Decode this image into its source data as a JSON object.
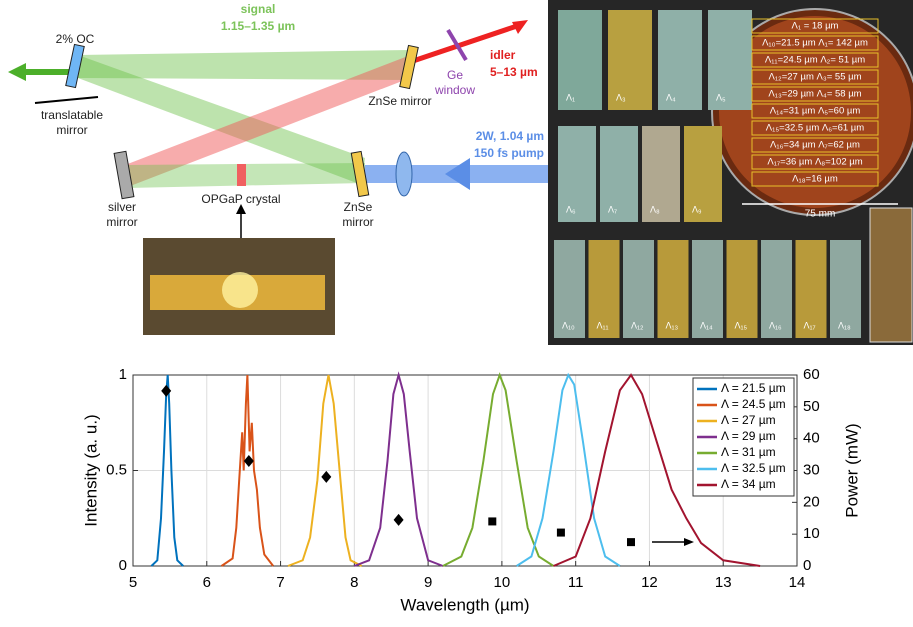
{
  "diagram": {
    "oc": "2% OC",
    "signal": "signal",
    "signal_range": "1.15–1.35 µm",
    "translatable": "translatable",
    "translatable_mirror": "mirror",
    "znse_top": "ZnSe mirror",
    "ge": "Ge",
    "ge_window": "window",
    "idler": "idler",
    "idler_range": "5–13 µm",
    "pump_power": "2W, 1.04 µm",
    "pump_pulse": "150 fs pump",
    "silver": "silver",
    "silver_mirror": "mirror",
    "crystal": "OPGaP crystal",
    "znse_bottom": "ZnSe",
    "znse_bottom_mirror": "mirror"
  },
  "photos": {
    "tiles": [
      "Λ₁",
      "Λ₃",
      "Λ₄",
      "Λ₅",
      "Λ₆",
      "Λ₇",
      "Λ₈",
      "Λ₉",
      "Λ₁₀",
      "Λ₁₁",
      "Λ₁₂",
      "Λ₁₃",
      "Λ₁₄",
      "Λ₁₅",
      "Λ₁₆",
      "Λ₁₇",
      "Λ₁₈"
    ],
    "wafer_rows": [
      "Λ₁ = 18 µm",
      "Λ₁₀=21.5 µm Λ₁= 142 µm",
      "Λ₁₁=24.5 µm Λ₂= 51 µm",
      "Λ₁₂=27 µm Λ₃= 55 µm",
      "Λ₁₃=29 µm Λ₄= 58 µm",
      "Λ₁₄=31 µm Λ₅=60 µm",
      "Λ₁₅=32.5 µm Λ₆=61 µm",
      "Λ₁₆=34 µm Λ₇=62 µm",
      "Λ₁₇=36 µm Λ₈=102 µm",
      "Λ₁₈=16 µm"
    ],
    "scale": "75 mm"
  },
  "chart_data": {
    "type": "line",
    "xlabel": "Wavelength (µm)",
    "ylabel": "Intensity (a. u.)",
    "y2label": "Power (mW)",
    "xlim": [
      5,
      14
    ],
    "xticks": [
      5,
      6,
      7,
      8,
      9,
      10,
      11,
      12,
      13,
      14
    ],
    "ylim": [
      0,
      1
    ],
    "yticks": [
      0,
      0.5,
      1
    ],
    "y2lim": [
      0,
      60
    ],
    "y2ticks": [
      0,
      10,
      20,
      30,
      40,
      50,
      60
    ],
    "grid": true,
    "legend": "upper right",
    "series": [
      {
        "name": "Λ = 21.5 µm",
        "color": "#0072bd",
        "x": [
          5.25,
          5.33,
          5.38,
          5.42,
          5.45,
          5.47,
          5.49,
          5.52,
          5.56,
          5.6,
          5.68
        ],
        "values": [
          0,
          0.03,
          0.25,
          0.6,
          0.9,
          1,
          0.85,
          0.5,
          0.15,
          0.03,
          0
        ]
      },
      {
        "name": "Λ = 24.5 µm",
        "color": "#d95319",
        "x": [
          6.2,
          6.35,
          6.4,
          6.44,
          6.48,
          6.5,
          6.53,
          6.55,
          6.58,
          6.61,
          6.64,
          6.68,
          6.72,
          6.78,
          6.9
        ],
        "values": [
          0,
          0.04,
          0.2,
          0.45,
          0.7,
          0.5,
          0.85,
          1,
          0.6,
          0.75,
          0.5,
          0.4,
          0.2,
          0.06,
          0
        ]
      },
      {
        "name": "Λ = 27 µm",
        "color": "#edb120",
        "x": [
          7.1,
          7.3,
          7.4,
          7.5,
          7.58,
          7.65,
          7.72,
          7.8,
          7.88,
          7.95,
          8.1
        ],
        "values": [
          0,
          0.03,
          0.15,
          0.45,
          0.85,
          1,
          0.85,
          0.5,
          0.15,
          0.03,
          0
        ]
      },
      {
        "name": "Λ = 29 µm",
        "color": "#7e2f8e",
        "x": [
          8.0,
          8.2,
          8.35,
          8.45,
          8.53,
          8.6,
          8.67,
          8.75,
          8.85,
          9.0,
          9.2
        ],
        "values": [
          0,
          0.03,
          0.2,
          0.55,
          0.9,
          1,
          0.9,
          0.6,
          0.25,
          0.03,
          0
        ]
      },
      {
        "name": "Λ = 31 µm",
        "color": "#77ac30",
        "x": [
          9.2,
          9.45,
          9.6,
          9.75,
          9.88,
          9.97,
          10.05,
          10.2,
          10.35,
          10.5,
          10.7
        ],
        "values": [
          0,
          0.05,
          0.2,
          0.55,
          0.9,
          1,
          0.92,
          0.55,
          0.2,
          0.05,
          0
        ]
      },
      {
        "name": "Λ = 32.5 µm",
        "color": "#4dbeee",
        "x": [
          10.2,
          10.4,
          10.55,
          10.7,
          10.82,
          10.9,
          10.98,
          11.1,
          11.25,
          11.4,
          11.6
        ],
        "values": [
          0,
          0.05,
          0.25,
          0.6,
          0.92,
          1,
          0.95,
          0.65,
          0.25,
          0.05,
          0
        ]
      },
      {
        "name": "Λ = 34 µm",
        "color": "#a2142f",
        "x": [
          10.7,
          11.0,
          11.2,
          11.4,
          11.6,
          11.75,
          11.9,
          12.1,
          12.3,
          12.5,
          12.7,
          13.0,
          13.5
        ],
        "values": [
          0,
          0.05,
          0.25,
          0.6,
          0.92,
          1,
          0.9,
          0.65,
          0.4,
          0.25,
          0.12,
          0.03,
          0
        ]
      }
    ],
    "power_points": {
      "axis": "y2",
      "color": "#000000",
      "x": [
        5.45,
        6.57,
        7.62,
        8.6,
        9.87,
        10.8,
        11.75
      ],
      "values": [
        55,
        33,
        28,
        14.5,
        14,
        10.5,
        7.5
      ],
      "markers": [
        "diamond",
        "diamond",
        "diamond",
        "diamond",
        "square",
        "square",
        "square"
      ]
    }
  }
}
